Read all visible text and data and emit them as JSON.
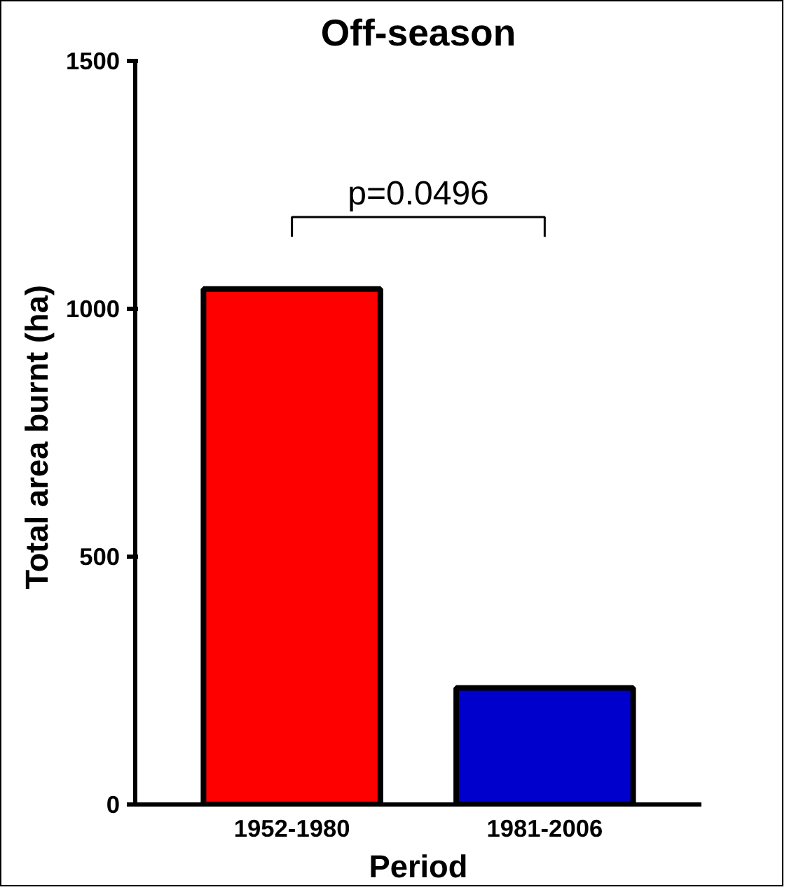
{
  "chart_data": {
    "type": "bar",
    "title": "Off-season",
    "xlabel": "Period",
    "ylabel": "Total area burnt  (ha)",
    "categories": [
      "1952-1980",
      "1981-2006"
    ],
    "values": [
      1040,
      235
    ],
    "colors": [
      "#ff0000",
      "#0000cc"
    ],
    "ylim": [
      0,
      1500
    ],
    "yticks": [
      0,
      500,
      1000,
      1500
    ],
    "grid": false,
    "annotations": [
      "p=0.0496"
    ]
  }
}
